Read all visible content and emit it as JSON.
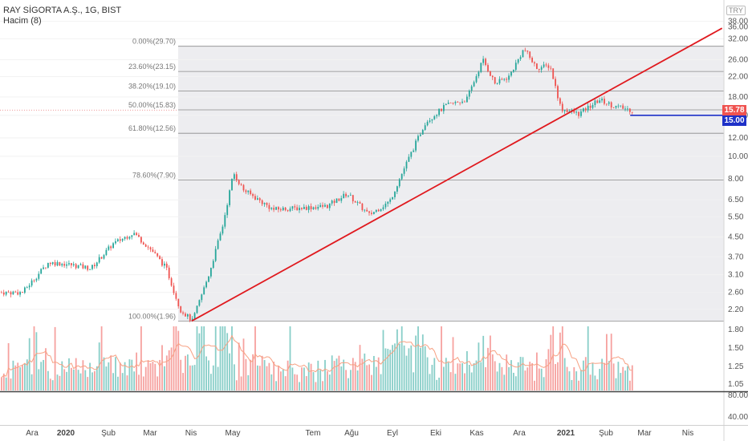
{
  "header": {
    "symbol": "RAY SİGORTA A.Ş., 1G, BIST",
    "volume_label": "Hacim (8)"
  },
  "currency_badge": "TRY",
  "price_tags": {
    "last_price": "15.78",
    "horizontal_line": "15.00",
    "last_color": "#ef5350",
    "line_color": "#1e31c8"
  },
  "colors": {
    "up": "#26a69a",
    "down": "#ef5350",
    "trendline": "#e0191e",
    "ma": "#f7a183"
  },
  "chart_data": {
    "type": "candlestick",
    "yscale": "log",
    "y_ticks": [
      "38.00",
      "32.00",
      "26.00",
      "22.00",
      "18.00",
      "15.00",
      "12.00",
      "10.00",
      "8.00",
      "6.50",
      "5.50",
      "4.50",
      "3.70",
      "3.10",
      "2.60",
      "2.20",
      "1.80",
      "1.50",
      "1.25",
      "1.05"
    ],
    "top_partial_tick": "36.00",
    "vol_pane_ticks": [
      "80.00",
      "40.00"
    ],
    "x_ticks": [
      "Ara",
      "2020",
      "Şub",
      "Mar",
      "Nis",
      "May",
      "Tem",
      "Ağu",
      "Eyl",
      "Eki",
      "Kas",
      "Ara",
      "2021",
      "Şub",
      "Mar",
      "Nis"
    ],
    "fib_levels": [
      {
        "label": "0.00%(29.70)",
        "value": 29.7
      },
      {
        "label": "23.60%(23.15)",
        "value": 23.15
      },
      {
        "label": "38.20%(19.10)",
        "value": 19.1
      },
      {
        "label": "50.00%(15.83)",
        "value": 15.83
      },
      {
        "label": "61.80%(12.56)",
        "value": 12.56
      },
      {
        "label": "78.60%(7.90)",
        "value": 7.9
      },
      {
        "label": "100.00%(1.96)",
        "value": 1.96
      }
    ],
    "price_path": [
      [
        "2019-12-01",
        2.6
      ],
      [
        "2019-12-20",
        3.5
      ],
      [
        "2020-01-01",
        3.45
      ],
      [
        "2020-01-20",
        3.3
      ],
      [
        "2020-02-05",
        4.2
      ],
      [
        "2020-02-20",
        4.7
      ],
      [
        "2020-03-05",
        3.9
      ],
      [
        "2020-03-15",
        3.3
      ],
      [
        "2020-03-25",
        2.2
      ],
      [
        "2020-04-03",
        1.96
      ],
      [
        "2020-04-15",
        3.1
      ],
      [
        "2020-04-25",
        5.0
      ],
      [
        "2020-05-03",
        8.5
      ],
      [
        "2020-05-10",
        7.2
      ],
      [
        "2020-06-01",
        5.9
      ],
      [
        "2020-06-20",
        6.0
      ],
      [
        "2020-07-10",
        6.1
      ],
      [
        "2020-07-25",
        6.9
      ],
      [
        "2020-08-10",
        5.6
      ],
      [
        "2020-08-25",
        6.4
      ],
      [
        "2020-09-05",
        9.0
      ],
      [
        "2020-09-20",
        14.0
      ],
      [
        "2020-10-05",
        16.5
      ],
      [
        "2020-10-20",
        17.5
      ],
      [
        "2020-11-01",
        26.0
      ],
      [
        "2020-11-10",
        20.5
      ],
      [
        "2020-11-20",
        22.0
      ],
      [
        "2020-12-01",
        29.0
      ],
      [
        "2020-12-10",
        24.0
      ],
      [
        "2020-12-20",
        24.5
      ],
      [
        "2020-12-28",
        16.0
      ],
      [
        "2021-01-10",
        15.2
      ],
      [
        "2021-01-25",
        17.5
      ],
      [
        "2021-02-05",
        16.4
      ],
      [
        "2021-02-18",
        15.78
      ]
    ],
    "trendline": [
      [
        "2020-04-03",
        1.96
      ],
      [
        "2021-04-25",
        35.5
      ]
    ],
    "horizontal_line": {
      "value": 15.0,
      "from": "2021-02-17"
    },
    "last_price": 15.78
  }
}
